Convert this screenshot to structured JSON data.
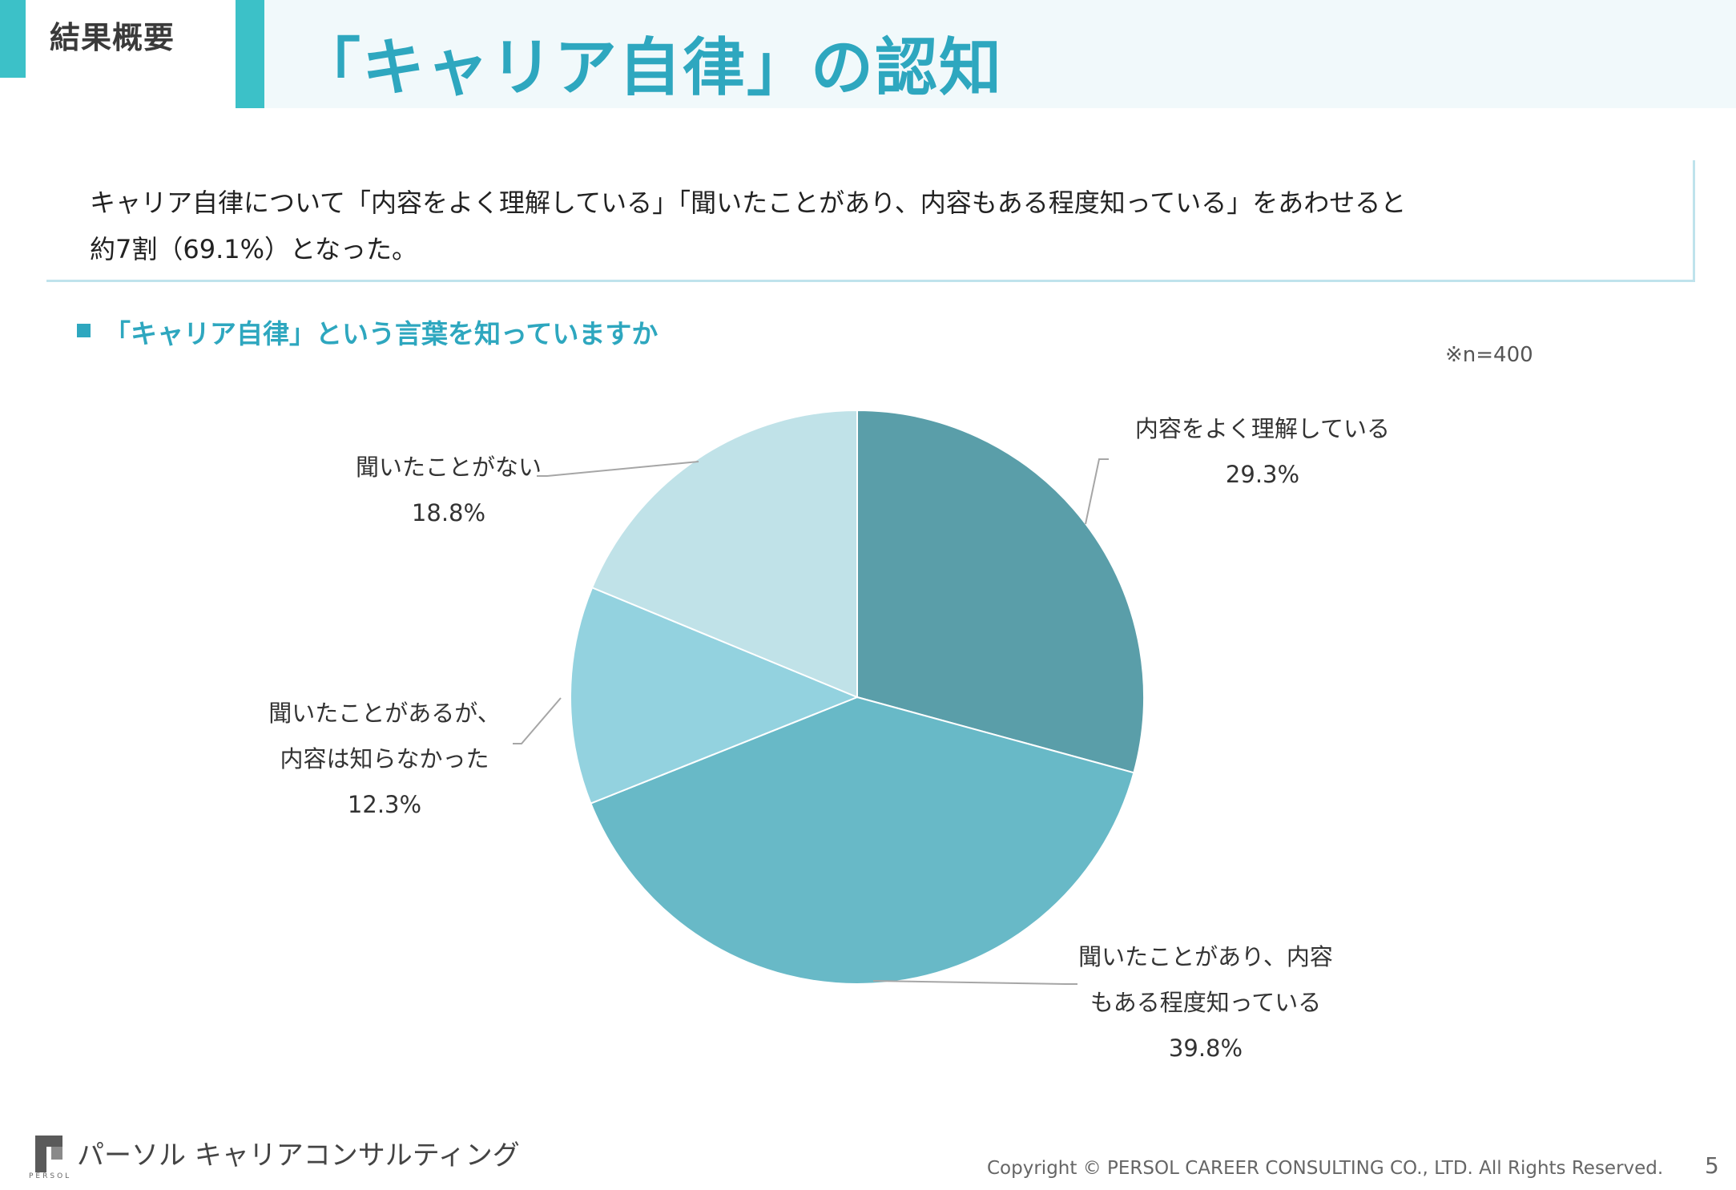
{
  "header": {
    "section_tag": "結果概要",
    "title": "「キャリア自律」の認知"
  },
  "summary": {
    "line1": "キャリア自律について「内容をよく理解している」「聞いたことがあり、内容もある程度知っている」をあわせると",
    "line2": "約7割（69.1%）となった。"
  },
  "question": {
    "title": "「キャリア自律」という言葉を知っていますか",
    "sample_note": "※n=400"
  },
  "chart_data": {
    "type": "pie",
    "title": "「キャリア自律」という言葉を知っていますか",
    "start_angle_deg": 0,
    "direction": "clockwise",
    "slices": [
      {
        "label_lines": [
          "内容をよく理解している"
        ],
        "value": 29.3,
        "value_label": "29.3%",
        "color": "#5a9ea9"
      },
      {
        "label_lines": [
          "聞いたことがあり、内容",
          "もある程度知っている"
        ],
        "value": 39.8,
        "value_label": "39.8%",
        "color": "#68b9c7"
      },
      {
        "label_lines": [
          "聞いたことがあるが、",
          "内容は知らなかった"
        ],
        "value": 12.3,
        "value_label": "12.3%",
        "color": "#93d2df"
      },
      {
        "label_lines": [
          "聞いたことがない"
        ],
        "value": 18.8,
        "value_label": "18.8%",
        "color": "#c0e2e8"
      }
    ]
  },
  "colors": {
    "accent": "#2ea7bf",
    "tag_bar": "#3cc1c8",
    "header_band": "#f1f9fb"
  },
  "footer": {
    "logo_icon": "persol-logo-icon",
    "logo_text": "PERSOL",
    "company": "パーソル キャリアコンサルティング",
    "copyright": "Copyright © PERSOL CAREER CONSULTING CO., LTD. All Rights Reserved.",
    "page_number": "5"
  }
}
